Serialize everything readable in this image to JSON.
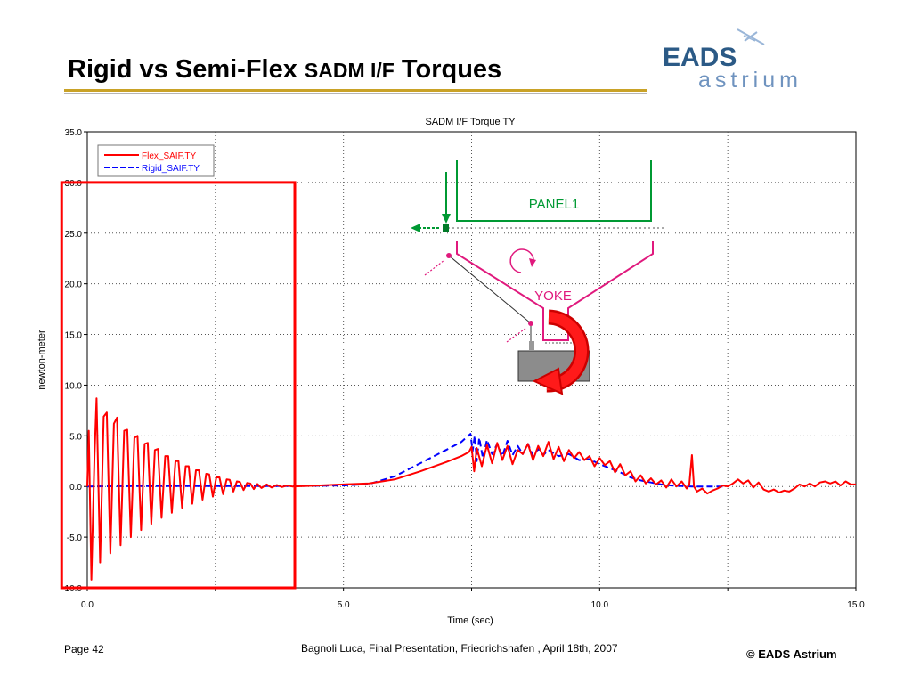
{
  "slide": {
    "title_part1": "Rigid vs Semi-Flex ",
    "title_part2": "SADM I/F",
    "title_part3": " Torques",
    "logo_top": "EADS",
    "logo_bottom": "astrium",
    "footer_page": "Page 42",
    "footer_center": "Bagnoli Luca, Final Presentation, Friedrichshafen , April 18th,  2007",
    "footer_copyright": "© EADS Astrium"
  },
  "colors": {
    "title_rule": "#c9a227",
    "flex": "#ff0000",
    "rigid": "#0000ff",
    "panel": "#009933",
    "yoke": "#e0197d",
    "highlight_box": "#ff0000"
  },
  "chart_data": {
    "type": "line",
    "title": "SADM I/F Torque TY",
    "xlabel": "Time (sec)",
    "ylabel": "newton-meter",
    "xlim": [
      0,
      15
    ],
    "ylim": [
      -10,
      35
    ],
    "xticks": [
      "0.0",
      "5.0",
      "10.0",
      "15.0"
    ],
    "yticks": [
      "-10.0",
      "-5.0",
      "0.0",
      "5.0",
      "10.0",
      "15.0",
      "20.0",
      "25.0",
      "30.0",
      "35.0"
    ],
    "grid": true,
    "legend": "top-left",
    "highlight_range": {
      "x": [
        -0.5,
        4.05
      ],
      "y": [
        -10,
        30
      ]
    },
    "series": [
      {
        "name": "Flex_SAIF.TY",
        "style": "solid",
        "points": [
          [
            0.0,
            0.0
          ],
          [
            0.03,
            5.5
          ],
          [
            0.08,
            -9.2
          ],
          [
            0.14,
            3.0
          ],
          [
            0.18,
            8.7
          ],
          [
            0.25,
            -7.5
          ],
          [
            0.32,
            6.9
          ],
          [
            0.38,
            7.3
          ],
          [
            0.45,
            -6.6
          ],
          [
            0.52,
            6.2
          ],
          [
            0.58,
            6.8
          ],
          [
            0.65,
            -5.8
          ],
          [
            0.72,
            5.5
          ],
          [
            0.78,
            5.6
          ],
          [
            0.85,
            -5.0
          ],
          [
            0.92,
            4.8
          ],
          [
            0.98,
            5.0
          ],
          [
            1.05,
            -4.3
          ],
          [
            1.12,
            4.2
          ],
          [
            1.18,
            4.3
          ],
          [
            1.25,
            -3.7
          ],
          [
            1.32,
            3.6
          ],
          [
            1.38,
            3.7
          ],
          [
            1.45,
            -3.1
          ],
          [
            1.52,
            3.0
          ],
          [
            1.58,
            3.0
          ],
          [
            1.65,
            -2.6
          ],
          [
            1.72,
            2.5
          ],
          [
            1.78,
            2.5
          ],
          [
            1.85,
            -2.1
          ],
          [
            1.92,
            2.0
          ],
          [
            1.98,
            2.0
          ],
          [
            2.05,
            -1.7
          ],
          [
            2.12,
            1.6
          ],
          [
            2.18,
            1.6
          ],
          [
            2.25,
            -1.3
          ],
          [
            2.32,
            1.25
          ],
          [
            2.38,
            1.2
          ],
          [
            2.45,
            -1.0
          ],
          [
            2.52,
            0.95
          ],
          [
            2.58,
            0.9
          ],
          [
            2.65,
            -0.75
          ],
          [
            2.72,
            0.7
          ],
          [
            2.78,
            0.65
          ],
          [
            2.85,
            -0.5
          ],
          [
            2.92,
            0.5
          ],
          [
            2.98,
            0.45
          ],
          [
            3.05,
            -0.35
          ],
          [
            3.12,
            0.35
          ],
          [
            3.18,
            0.3
          ],
          [
            3.25,
            -0.25
          ],
          [
            3.32,
            0.25
          ],
          [
            3.4,
            -0.15
          ],
          [
            3.5,
            0.2
          ],
          [
            3.6,
            -0.1
          ],
          [
            3.7,
            0.15
          ],
          [
            3.8,
            -0.05
          ],
          [
            3.9,
            0.1
          ],
          [
            4.0,
            0.0
          ],
          [
            4.5,
            0.1
          ],
          [
            5.0,
            0.2
          ],
          [
            5.5,
            0.3
          ],
          [
            6.0,
            0.7
          ],
          [
            6.5,
            1.5
          ],
          [
            7.0,
            2.4
          ],
          [
            7.3,
            3.0
          ],
          [
            7.45,
            3.4
          ],
          [
            7.5,
            3.9
          ],
          [
            7.55,
            1.5
          ],
          [
            7.6,
            3.8
          ],
          [
            7.7,
            2.0
          ],
          [
            7.8,
            4.1
          ],
          [
            7.9,
            2.3
          ],
          [
            8.0,
            4.3
          ],
          [
            8.1,
            2.6
          ],
          [
            8.2,
            4.0
          ],
          [
            8.3,
            2.2
          ],
          [
            8.4,
            3.6
          ],
          [
            8.5,
            3.2
          ],
          [
            8.6,
            4.2
          ],
          [
            8.7,
            2.6
          ],
          [
            8.8,
            4.0
          ],
          [
            8.9,
            3.0
          ],
          [
            9.0,
            4.4
          ],
          [
            9.1,
            2.7
          ],
          [
            9.2,
            3.9
          ],
          [
            9.3,
            2.5
          ],
          [
            9.4,
            3.6
          ],
          [
            9.5,
            2.8
          ],
          [
            9.6,
            3.4
          ],
          [
            9.7,
            2.6
          ],
          [
            9.8,
            3.0
          ],
          [
            9.9,
            2.0
          ],
          [
            10.0,
            2.8
          ],
          [
            10.1,
            2.1
          ],
          [
            10.2,
            2.5
          ],
          [
            10.3,
            1.4
          ],
          [
            10.4,
            2.2
          ],
          [
            10.5,
            1.1
          ],
          [
            10.6,
            1.5
          ],
          [
            10.7,
            0.5
          ],
          [
            10.8,
            1.1
          ],
          [
            10.9,
            0.3
          ],
          [
            11.0,
            0.8
          ],
          [
            11.1,
            0.2
          ],
          [
            11.2,
            0.6
          ],
          [
            11.3,
            -0.1
          ],
          [
            11.4,
            0.7
          ],
          [
            11.5,
            0.0
          ],
          [
            11.6,
            0.5
          ],
          [
            11.7,
            -0.2
          ],
          [
            11.75,
            0.2
          ],
          [
            11.8,
            3.1
          ],
          [
            11.84,
            0.0
          ],
          [
            11.9,
            -0.5
          ],
          [
            12.0,
            -0.2
          ],
          [
            12.1,
            -0.7
          ],
          [
            12.2,
            -0.4
          ],
          [
            12.3,
            -0.2
          ],
          [
            12.4,
            0.1
          ],
          [
            12.5,
            0.0
          ],
          [
            12.6,
            0.3
          ],
          [
            12.7,
            0.7
          ],
          [
            12.8,
            0.3
          ],
          [
            12.9,
            0.6
          ],
          [
            13.0,
            -0.1
          ],
          [
            13.1,
            0.4
          ],
          [
            13.2,
            -0.3
          ],
          [
            13.3,
            -0.5
          ],
          [
            13.4,
            -0.3
          ],
          [
            13.5,
            -0.6
          ],
          [
            13.6,
            -0.4
          ],
          [
            13.7,
            -0.5
          ],
          [
            13.8,
            -0.2
          ],
          [
            13.9,
            0.2
          ],
          [
            14.0,
            0.0
          ],
          [
            14.1,
            0.3
          ],
          [
            14.2,
            0.0
          ],
          [
            14.3,
            0.4
          ],
          [
            14.4,
            0.5
          ],
          [
            14.5,
            0.3
          ],
          [
            14.6,
            0.5
          ],
          [
            14.7,
            0.1
          ],
          [
            14.8,
            0.5
          ],
          [
            14.9,
            0.2
          ],
          [
            15.0,
            0.2
          ]
        ]
      },
      {
        "name": "Rigid_SAIF.TY",
        "style": "dashed",
        "points": [
          [
            0.0,
            0.0
          ],
          [
            1.0,
            0.05
          ],
          [
            2.0,
            0.05
          ],
          [
            3.0,
            0.05
          ],
          [
            4.0,
            0.05
          ],
          [
            5.0,
            0.1
          ],
          [
            5.5,
            0.25
          ],
          [
            6.0,
            1.0
          ],
          [
            6.5,
            2.3
          ],
          [
            7.0,
            3.6
          ],
          [
            7.3,
            4.4
          ],
          [
            7.48,
            5.2
          ],
          [
            7.52,
            3.5
          ],
          [
            7.56,
            5.0
          ],
          [
            7.6,
            2.5
          ],
          [
            7.65,
            4.8
          ],
          [
            7.72,
            2.8
          ],
          [
            7.8,
            4.6
          ],
          [
            7.9,
            3.2
          ],
          [
            8.0,
            4.2
          ],
          [
            8.1,
            3.0
          ],
          [
            8.2,
            4.5
          ],
          [
            8.3,
            3.1
          ],
          [
            8.4,
            4.0
          ],
          [
            8.5,
            3.2
          ],
          [
            8.6,
            4.2
          ],
          [
            8.7,
            3.0
          ],
          [
            8.8,
            3.7
          ],
          [
            8.9,
            3.1
          ],
          [
            9.0,
            3.6
          ],
          [
            9.2,
            3.0
          ],
          [
            9.4,
            3.2
          ],
          [
            9.6,
            2.6
          ],
          [
            9.8,
            2.7
          ],
          [
            10.0,
            2.2
          ],
          [
            10.2,
            1.8
          ],
          [
            10.4,
            1.4
          ],
          [
            10.6,
            0.9
          ],
          [
            10.8,
            0.6
          ],
          [
            11.0,
            0.4
          ],
          [
            11.2,
            0.2
          ],
          [
            11.4,
            0.1
          ],
          [
            11.6,
            0.05
          ],
          [
            11.8,
            0.0
          ],
          [
            12.0,
            0.0
          ],
          [
            12.2,
            0.0
          ],
          [
            12.4,
            0.0
          ]
        ]
      }
    ],
    "schematic": {
      "panel_label": "PANEL1",
      "yoke_label": "YOKE"
    }
  }
}
